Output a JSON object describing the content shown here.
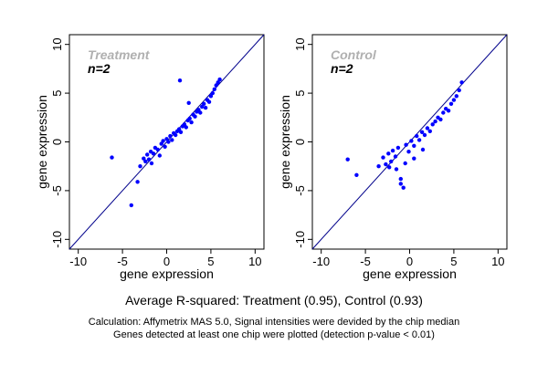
{
  "figure": {
    "summary": "Average R-squared: Treatment (0.95), Control (0.93)",
    "note_lines": [
      "Calculation: Affymetrix MAS 5.0, Signal intensities were devided by the chip median",
      "Genes detected at least one chip were plotted (detection p-value < 0.01)"
    ]
  },
  "colors": {
    "points": "#0000ff",
    "diagonal": "#00008b",
    "group_label": "#b0b0b0",
    "axis": "#000000"
  },
  "chart_data": [
    {
      "type": "scatter",
      "title": "",
      "group_label": "Treatment",
      "n_label": "n=2",
      "xlabel": "gene expression",
      "ylabel": "gene expression",
      "xlim": [
        -11,
        11
      ],
      "ylim": [
        -11,
        11
      ],
      "xticks": [
        -10,
        -5,
        0,
        5,
        10
      ],
      "yticks": [
        -10,
        -5,
        0,
        5,
        10
      ],
      "grid": false,
      "reference_line": "y = x",
      "r_squared": 0.95,
      "series": [
        {
          "x": [
            -6.2,
            -4.0,
            -3.0,
            -2.6,
            -2.4,
            -2.2,
            -2.0,
            -1.8,
            -1.7,
            -1.5,
            -1.3,
            -1.0,
            -0.8,
            -0.6,
            -0.4,
            -0.2,
            0.0,
            0.2,
            0.4,
            0.6,
            0.8,
            1.0,
            1.2,
            1.4,
            1.6,
            1.8,
            2.0,
            2.2,
            2.4,
            2.6,
            2.8,
            3.0,
            3.2,
            3.4,
            3.6,
            3.8,
            4.0,
            4.2,
            4.4,
            4.6,
            4.8,
            5.0,
            5.2,
            5.4,
            5.6,
            5.8,
            6.0,
            1.5,
            2.5,
            -3.3
          ],
          "y": [
            -1.6,
            -6.5,
            -2.5,
            -1.7,
            -2.0,
            -1.3,
            -1.8,
            -1.0,
            -2.2,
            -1.2,
            -0.6,
            -0.8,
            -1.4,
            -0.2,
            0.1,
            -0.5,
            0.3,
            0.0,
            0.6,
            0.2,
            0.9,
            0.7,
            1.1,
            1.3,
            1.0,
            1.6,
            1.8,
            1.5,
            2.2,
            2.4,
            2.0,
            2.8,
            2.6,
            3.1,
            3.3,
            3.0,
            3.6,
            3.9,
            3.5,
            4.3,
            4.1,
            4.7,
            5.0,
            5.4,
            5.8,
            6.1,
            6.4,
            6.3,
            4.0,
            -4.1
          ]
        }
      ]
    },
    {
      "type": "scatter",
      "title": "",
      "group_label": "Control",
      "n_label": "n=2",
      "xlabel": "gene expression",
      "ylabel": "gene expression",
      "xlim": [
        -11,
        11
      ],
      "ylim": [
        -11,
        11
      ],
      "xticks": [
        -10,
        -5,
        0,
        5,
        10
      ],
      "yticks": [
        -10,
        -5,
        0,
        5,
        10
      ],
      "grid": false,
      "reference_line": "y = x",
      "r_squared": 0.93,
      "series": [
        {
          "x": [
            -7.0,
            -6.0,
            -3.5,
            -3.0,
            -2.7,
            -2.4,
            -2.1,
            -1.9,
            -1.6,
            -1.3,
            -1.0,
            -0.7,
            -0.4,
            -0.1,
            0.2,
            0.5,
            0.8,
            1.1,
            1.4,
            1.7,
            2.0,
            2.3,
            2.6,
            2.9,
            3.2,
            3.5,
            3.8,
            4.1,
            4.4,
            4.7,
            5.0,
            5.3,
            5.6,
            5.9,
            -1.5,
            -0.5,
            0.5,
            1.5,
            -2.3,
            -1.0
          ],
          "y": [
            -1.8,
            -3.4,
            -2.5,
            -1.6,
            -2.3,
            -1.2,
            -2.0,
            -0.9,
            -1.5,
            -0.6,
            -3.8,
            -4.7,
            -0.3,
            -1.0,
            0.1,
            -0.4,
            0.6,
            0.2,
            1.0,
            0.7,
            1.4,
            1.1,
            1.8,
            2.1,
            2.5,
            2.3,
            3.0,
            3.4,
            3.2,
            3.9,
            4.3,
            4.7,
            5.3,
            6.1,
            -2.8,
            -2.2,
            -1.7,
            -0.8,
            -2.6,
            -4.3
          ]
        }
      ]
    }
  ]
}
